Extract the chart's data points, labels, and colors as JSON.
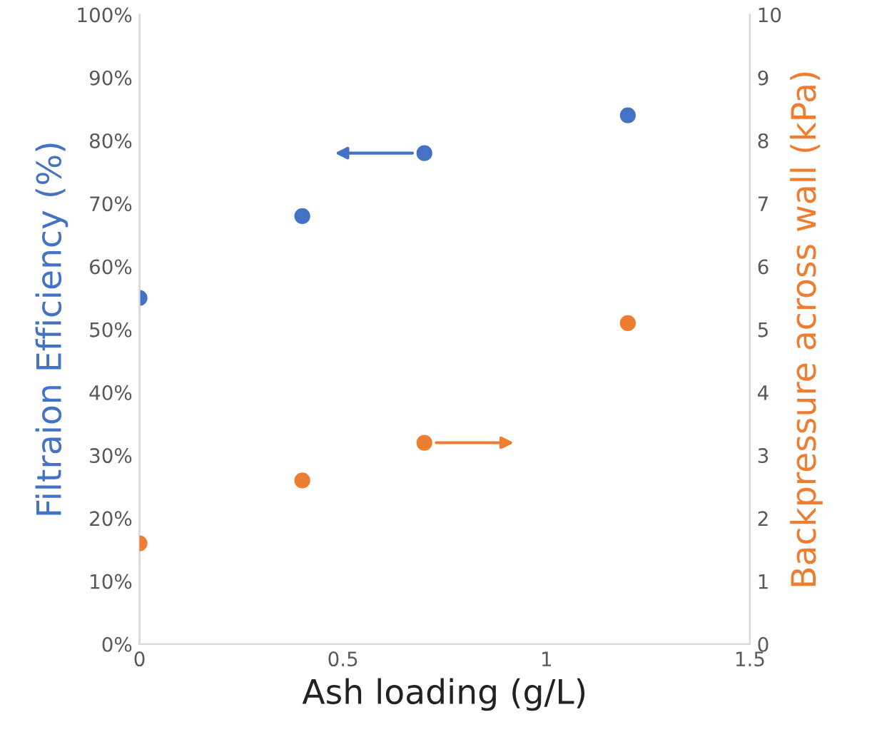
{
  "chart_data": {
    "type": "scatter",
    "xlabel": "Ash loading (g/L)",
    "ylabel": "Filtraion Efficiency (%)",
    "y2label": "Backpressure across wall (kPa)",
    "series": [
      {
        "color": "#4472c4",
        "x": [
          0,
          0.4,
          0.7,
          1.2
        ],
        "values": [
          55,
          68,
          78,
          84
        ]
      },
      {
        "color": "#ed7d31",
        "x": [
          0,
          0.4,
          0.7,
          1.2
        ],
        "values": [
          1.6,
          2.6,
          3.2,
          5.1
        ],
        "axis": "y2"
      }
    ],
    "xlim": [
      0,
      1.5
    ],
    "xticks": [
      0,
      0.5,
      1,
      1.5
    ],
    "ylim": [
      0,
      100
    ],
    "yticks": [
      {
        "value": 0,
        "label": "0%"
      },
      {
        "value": 10,
        "label": "10%"
      },
      {
        "value": 20,
        "label": "20%"
      },
      {
        "value": 30,
        "label": "30%"
      },
      {
        "value": 40,
        "label": "40%"
      },
      {
        "value": 50,
        "label": "50%"
      },
      {
        "value": 60,
        "label": "60%"
      },
      {
        "value": 70,
        "label": "70%"
      },
      {
        "value": 80,
        "label": "80%"
      },
      {
        "value": 90,
        "label": "90%"
      },
      {
        "value": 100,
        "label": "100%"
      }
    ],
    "y2lim": [
      0,
      10
    ],
    "y2ticks": [
      0,
      1,
      2,
      3,
      4,
      5,
      6,
      7,
      8,
      9,
      10
    ],
    "marker": "circle",
    "grid": false,
    "legend": false
  }
}
